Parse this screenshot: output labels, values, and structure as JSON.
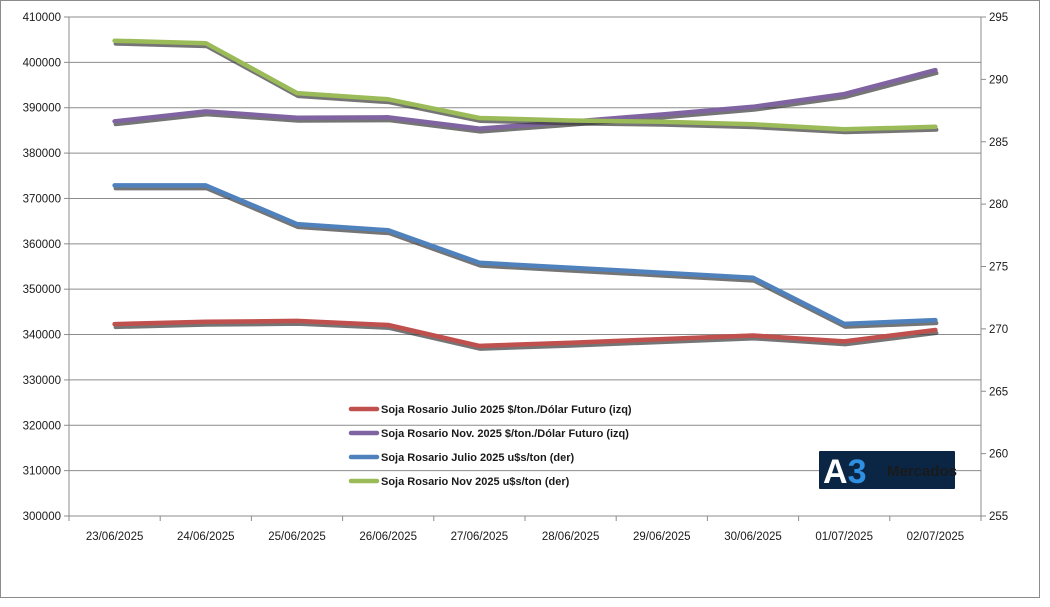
{
  "chart_data": {
    "type": "line",
    "categories": [
      "23/06/2025",
      "24/06/2025",
      "25/06/2025",
      "26/06/2025",
      "27/06/2025",
      "28/06/2025",
      "29/06/2025",
      "30/06/2025",
      "01/07/2025",
      "02/07/2025"
    ],
    "y_left": {
      "min": 300000,
      "max": 410000,
      "step": 10000,
      "ticks": [
        "300000",
        "310000",
        "320000",
        "330000",
        "340000",
        "350000",
        "360000",
        "370000",
        "380000",
        "390000",
        "400000",
        "410000"
      ]
    },
    "y_right": {
      "min": 255,
      "max": 295,
      "step": 5,
      "ticks": [
        "255",
        "260",
        "265",
        "270",
        "275",
        "280",
        "285",
        "290",
        "295"
      ]
    },
    "grid": "horizontal",
    "legend_position": "center-bottom",
    "series": [
      {
        "name": "Soja Rosario  Julio  2025 $/ton./Dólar Futuro (izq)",
        "axis": "left",
        "color": "#c0504d",
        "values": [
          342300,
          342800,
          343000,
          342100,
          337500,
          338200,
          339000,
          339800,
          338500,
          341000
        ]
      },
      {
        "name": "Soja Rosario  Nov. 2025 $/ton./Dólar Futuro (izq)",
        "axis": "left",
        "color": "#8064a2",
        "values": [
          387000,
          389200,
          387800,
          387900,
          385400,
          386900,
          388500,
          390200,
          393000,
          398300
        ]
      },
      {
        "name": "Soja Rosario  Julio  2025 u$s/ton (der)",
        "axis": "right",
        "color": "#4f81bd",
        "values": [
          281.5,
          281.5,
          278.4,
          277.9,
          275.3,
          274.9,
          274.5,
          274.1,
          270.4,
          270.7
        ]
      },
      {
        "name": "Soja Rosario  Nov 2025 u$s/ton (der)",
        "axis": "right",
        "color": "#9bbb59",
        "values": [
          293.1,
          292.9,
          288.9,
          288.4,
          286.9,
          286.7,
          286.6,
          286.4,
          286.0,
          286.2
        ]
      }
    ]
  },
  "logo": {
    "mark": "A3",
    "text": "Mercados",
    "bg_color": "#0b2545",
    "mark_color": "#ffffff",
    "accent_color": "#2f8fe0"
  }
}
